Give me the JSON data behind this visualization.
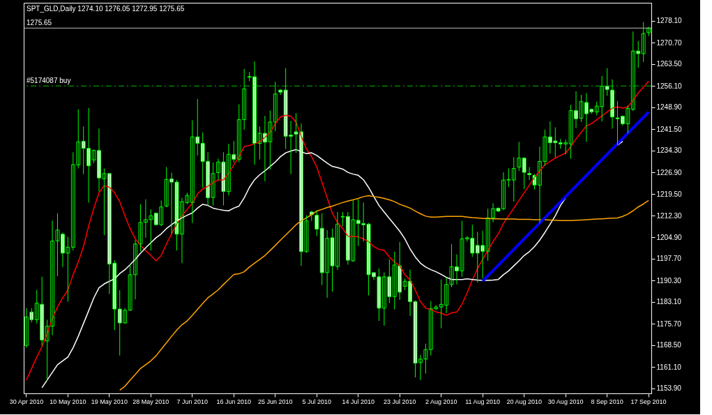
{
  "chart_data": {
    "type": "candlestick",
    "title": "SPT_GLD,Daily  1274.10 1276.05 1272.95 1275.65",
    "categories": [
      "30 Apr 2010",
      null,
      null,
      null,
      null,
      null,
      null,
      null,
      "10 May 2010",
      null,
      null,
      null,
      null,
      null,
      null,
      null,
      "19 May 2010",
      null,
      null,
      null,
      null,
      null,
      null,
      null,
      "28 May 2010",
      null,
      null,
      null,
      null,
      null,
      null,
      null,
      "7 Jun 2010",
      null,
      null,
      null,
      null,
      null,
      null,
      null,
      "16 Jun 2010",
      null,
      null,
      null,
      null,
      null,
      null,
      null,
      "25 Jun 2010",
      null,
      null,
      null,
      null,
      null,
      null,
      null,
      "5 Jul 2010",
      null,
      null,
      null,
      null,
      null,
      null,
      null,
      "14 Jul 2010",
      null,
      null,
      null,
      null,
      null,
      null,
      null,
      "23 Jul 2010",
      null,
      null,
      null,
      null,
      null,
      null,
      null,
      "2 Aug 2010",
      null,
      null,
      null,
      null,
      null,
      null,
      null,
      "11 Aug 2010",
      null,
      null,
      null,
      null,
      null,
      null,
      null,
      "20 Aug 2010",
      null,
      null,
      null,
      null,
      null,
      null,
      null,
      "30 Aug 2010",
      null,
      null,
      null,
      null,
      null,
      null,
      null,
      "8 Sep 2010",
      null,
      null,
      null,
      null,
      null,
      null,
      null,
      "17 Sep 2010"
    ],
    "ohlc": [
      [
        1168.4,
        1181.0,
        1167.6,
        1178.0
      ],
      [
        1179.7,
        1181.0,
        1176.2,
        1177.1
      ],
      [
        1177.1,
        1187.2,
        1175.8,
        1182.7
      ],
      [
        1182.3,
        1191.6,
        1168.4,
        1170.2
      ],
      [
        1169.9,
        1177.1,
        1156.3,
        1174.9
      ],
      [
        1174.9,
        1210.6,
        1171.9,
        1203.7
      ],
      [
        1203.7,
        1213.1,
        1191.8,
        1207.4
      ],
      [
        1206.0,
        1206.5,
        1194.9,
        1199.6
      ],
      [
        1199.6,
        1205.1,
        1183.2,
        1201.6
      ],
      [
        1201.6,
        1233.7,
        1200.5,
        1229.5
      ],
      [
        1229.4,
        1248.2,
        1228.2,
        1237.2
      ],
      [
        1237.4,
        1242.4,
        1226.3,
        1235.0
      ],
      [
        1235.0,
        1248.6,
        1216.7,
        1229.1
      ],
      [
        1231.1,
        1234.6,
        1230.0,
        1234.3
      ],
      [
        1234.3,
        1241.7,
        1220.4,
        1225.0
      ],
      [
        1224.7,
        1228.2,
        1205.7,
        1226.5
      ],
      [
        1226.5,
        1226.5,
        1185.8,
        1195.9
      ],
      [
        1196.2,
        1197.2,
        1173.6,
        1180.7
      ],
      [
        1180.7,
        1187.1,
        1165.0,
        1176.0
      ],
      [
        1176.0,
        1181.0,
        1175.8,
        1180.3
      ],
      [
        1180.3,
        1195.7,
        1180.1,
        1192.3
      ],
      [
        1192.3,
        1204.0,
        1184.0,
        1202.7
      ],
      [
        1202.7,
        1216.1,
        1200.2,
        1210.0
      ],
      [
        1210.0,
        1217.8,
        1204.8,
        1210.9
      ],
      [
        1210.9,
        1214.4,
        1200.5,
        1212.2
      ],
      [
        1213.1,
        1213.3,
        1209.0,
        1209.2
      ],
      [
        1209.2,
        1217.4,
        1208.7,
        1215.2
      ],
      [
        1215.5,
        1228.7,
        1215.2,
        1224.5
      ],
      [
        1224.7,
        1226.8,
        1206.1,
        1223.6
      ],
      [
        1223.6,
        1224.3,
        1200.5,
        1206.0
      ],
      [
        1206.0,
        1218.3,
        1196.2,
        1217.0
      ],
      [
        1216.7,
        1220.0,
        1216.1,
        1219.1
      ],
      [
        1216.7,
        1244.5,
        1209.8,
        1238.9
      ],
      [
        1238.9,
        1251.7,
        1232.6,
        1236.7
      ],
      [
        1236.7,
        1240.4,
        1221.7,
        1230.6
      ],
      [
        1230.6,
        1233.7,
        1215.7,
        1218.3
      ],
      [
        1218.4,
        1230.3,
        1215.7,
        1226.5
      ],
      [
        1226.8,
        1231.5,
        1224.3,
        1230.4
      ],
      [
        1230.4,
        1233.7,
        1215.7,
        1220.4
      ],
      [
        1220.4,
        1236.5,
        1219.1,
        1233.0
      ],
      [
        1232.9,
        1237.5,
        1230.3,
        1231.3
      ],
      [
        1231.3,
        1249.9,
        1230.3,
        1244.7
      ],
      [
        1244.7,
        1261.8,
        1241.3,
        1255.1
      ],
      [
        1259.0,
        1260.8,
        1257.7,
        1259.3
      ],
      [
        1259.2,
        1264.4,
        1229.5,
        1236.7
      ],
      [
        1236.7,
        1242.4,
        1231.3,
        1240.1
      ],
      [
        1240.1,
        1246.0,
        1223.9,
        1237.1
      ],
      [
        1237.2,
        1247.8,
        1227.8,
        1243.9
      ],
      [
        1243.9,
        1257.5,
        1240.8,
        1253.4
      ],
      [
        1254.7,
        1255.1,
        1253.1,
        1254.0
      ],
      [
        1254.7,
        1262.1,
        1234.8,
        1239.1
      ],
      [
        1239.5,
        1244.3,
        1226.3,
        1239.1
      ],
      [
        1240.6,
        1246.9,
        1233.5,
        1239.8
      ],
      [
        1240.6,
        1243.4,
        1195.3,
        1200.1
      ],
      [
        1200.1,
        1212.4,
        1199.7,
        1210.5
      ],
      [
        1213.5,
        1213.9,
        1210.5,
        1212.6
      ],
      [
        1212.4,
        1214.1,
        1205.4,
        1207.7
      ],
      [
        1208.0,
        1213.1,
        1188.8,
        1193.0
      ],
      [
        1193.0,
        1207.4,
        1184.5,
        1204.6
      ],
      [
        1204.8,
        1207.9,
        1186.6,
        1195.3
      ],
      [
        1195.1,
        1213.5,
        1194.0,
        1209.4
      ],
      [
        1211.8,
        1213.5,
        1208.7,
        1212.0
      ],
      [
        1212.0,
        1213.5,
        1195.7,
        1197.2
      ],
      [
        1197.0,
        1217.4,
        1196.6,
        1210.9
      ],
      [
        1210.7,
        1217.8,
        1202.0,
        1209.6
      ],
      [
        1209.6,
        1216.7,
        1203.5,
        1209.2
      ],
      [
        1209.4,
        1209.8,
        1185.3,
        1192.3
      ],
      [
        1193.0,
        1193.2,
        1190.5,
        1191.6
      ],
      [
        1191.6,
        1194.4,
        1176.7,
        1181.0
      ],
      [
        1181.0,
        1193.1,
        1175.1,
        1191.6
      ],
      [
        1191.6,
        1197.5,
        1182.7,
        1184.9
      ],
      [
        1184.9,
        1200.1,
        1180.6,
        1195.6
      ],
      [
        1195.3,
        1203.4,
        1183.8,
        1186.4
      ],
      [
        1188.4,
        1191.0,
        1187.1,
        1190.1
      ],
      [
        1190.1,
        1194.0,
        1178.4,
        1183.2
      ],
      [
        1183.2,
        1183.6,
        1157.6,
        1162.4
      ],
      [
        1162.6,
        1165.2,
        1156.7,
        1163.8
      ],
      [
        1163.8,
        1169.0,
        1158.9,
        1167.0
      ],
      [
        1167.0,
        1183.4,
        1165.0,
        1180.8
      ],
      [
        1180.8,
        1182.0,
        1180.3,
        1181.4
      ],
      [
        1181.4,
        1190.7,
        1174.2,
        1182.3
      ],
      [
        1182.0,
        1191.4,
        1179.3,
        1189.0
      ],
      [
        1189.0,
        1202.7,
        1188.1,
        1195.0
      ],
      [
        1195.0,
        1199.2,
        1189.0,
        1193.6
      ],
      [
        1193.6,
        1210.5,
        1191.6,
        1204.4
      ],
      [
        1204.4,
        1205.4,
        1203.5,
        1204.8
      ],
      [
        1204.6,
        1209.2,
        1198.3,
        1199.6
      ],
      [
        1202.2,
        1206.8,
        1189.7,
        1199.6
      ],
      [
        1202.2,
        1207.2,
        1191.0,
        1200.2
      ],
      [
        1200.2,
        1214.6,
        1197.0,
        1211.5
      ],
      [
        1211.5,
        1216.5,
        1210.0,
        1214.6
      ],
      [
        1214.8,
        1215.0,
        1213.5,
        1213.8
      ],
      [
        1214.6,
        1226.9,
        1214.1,
        1224.3
      ],
      [
        1224.3,
        1228.2,
        1221.9,
        1224.5
      ],
      [
        1224.3,
        1232.0,
        1217.0,
        1228.2
      ],
      [
        1228.7,
        1237.2,
        1227.4,
        1231.7
      ],
      [
        1231.7,
        1232.0,
        1221.3,
        1226.9
      ],
      [
        1226.5,
        1228.7,
        1224.3,
        1226.1
      ],
      [
        1225.9,
        1226.3,
        1221.1,
        1222.6
      ],
      [
        1222.6,
        1235.6,
        1209.8,
        1230.6
      ],
      [
        1230.6,
        1241.3,
        1229.1,
        1238.9
      ],
      [
        1238.9,
        1244.1,
        1233.2,
        1236.9
      ],
      [
        1237.5,
        1242.1,
        1232.0,
        1236.9
      ],
      [
        1236.9,
        1238.2,
        1234.9,
        1236.5
      ],
      [
        1236.5,
        1238.0,
        1233.0,
        1236.9
      ],
      [
        1236.5,
        1249.7,
        1231.5,
        1247.8
      ],
      [
        1247.8,
        1254.3,
        1241.9,
        1245.0
      ],
      [
        1245.2,
        1253.1,
        1243.9,
        1250.8
      ],
      [
        1250.5,
        1253.7,
        1237.2,
        1246.7
      ],
      [
        1248.2,
        1248.5,
        1246.7,
        1247.3
      ],
      [
        1247.3,
        1250.8,
        1246.2,
        1249.3
      ],
      [
        1249.1,
        1259.5,
        1244.1,
        1256.0
      ],
      [
        1256.0,
        1262.1,
        1252.8,
        1254.9
      ],
      [
        1254.7,
        1258.3,
        1241.7,
        1245.6
      ],
      [
        1245.3,
        1251.0,
        1236.1,
        1245.0
      ],
      [
        1245.9,
        1246.0,
        1242.7,
        1243.3
      ],
      [
        1243.3,
        1249.5,
        1240.1,
        1248.5
      ],
      [
        1248.2,
        1274.5,
        1247.6,
        1267.9
      ],
      [
        1267.9,
        1271.3,
        1262.3,
        1267.0
      ],
      [
        1267.0,
        1277.7,
        1264.2,
        1273.8
      ],
      [
        1274.1,
        1276.05,
        1272.95,
        1275.65
      ]
    ],
    "series": [
      {
        "type": "line",
        "color": "#ff0000",
        "values": [
          1156.7,
          1160.6,
          1164.5,
          1168.0,
          1172.3,
          1177.5,
          1181.4,
          1184.5,
          1187.1,
          1192.3,
          1196.6,
          1201.8,
          1208.7,
          1214.8,
          1220.0,
          1222.4,
          1221.9,
          1220.0,
          1217.0,
          1212.2,
          1207.9,
          1204.4,
          1202.2,
          1200.5,
          1198.8,
          1197.0,
          1198.8,
          1202.7,
          1206.1,
          1209.6,
          1212.2,
          1214.4,
          1216.5,
          1219.6,
          1221.3,
          1222.2,
          1223.5,
          1224.3,
          1224.3,
          1226.5,
          1229.5,
          1232.1,
          1235.6,
          1236.0,
          1236.5,
          1237.3,
          1238.7,
          1240.4,
          1243.4,
          1245.6,
          1246.2,
          1245.9,
          1243.9,
          1239.1,
          1234.8,
          1232.2,
          1228.7,
          1223.5,
          1218.3,
          1213.1,
          1210.0,
          1207.9,
          1205.3,
          1205.3,
          1205.1,
          1204.4,
          1203.5,
          1201.8,
          1200.9,
          1200.5,
          1198.3,
          1196.6,
          1195.3,
          1192.3,
          1190.5,
          1187.1,
          1183.2,
          1181.0,
          1180.6,
          1179.7,
          1179.3,
          1178.6,
          1179.4,
          1179.7,
          1182.3,
          1186.2,
          1190.5,
          1194.4,
          1197.5,
          1200.5,
          1203.5,
          1206.1,
          1209.6,
          1212.2,
          1214.8,
          1217.4,
          1220.0,
          1222.6,
          1225.2,
          1227.4,
          1229.5,
          1230.6,
          1231.7,
          1232.6,
          1233.4,
          1235.6,
          1238.2,
          1240.4,
          1242.6,
          1243.4,
          1244.7,
          1246.0,
          1247.3,
          1248.6,
          1249.0,
          1248.6,
          1249.0,
          1251.2,
          1253.8,
          1255.6,
          1257.7
        ]
      },
      {
        "type": "line",
        "color": "#ffffff",
        "values": [
          null,
          null,
          null,
          1154.1,
          1156.7,
          1159.3,
          1161.9,
          1163.2,
          1164.5,
          1167.6,
          1171.5,
          1175.8,
          1180.1,
          1184.5,
          1187.9,
          1189.2,
          1190.1,
          1190.9,
          1192.7,
          1194.0,
          1195.7,
          1197.5,
          1199.6,
          1201.4,
          1203.1,
          1204.8,
          1206.1,
          1207.9,
          1209.2,
          1210.5,
          1211.5,
          1212.4,
          1213.2,
          1214.8,
          1216.1,
          1215.7,
          1214.8,
          1214.4,
          1214.1,
          1213.9,
          1214.8,
          1215.5,
          1218.3,
          1221.8,
          1224.4,
          1226.1,
          1227.4,
          1228.9,
          1230.4,
          1232.2,
          1233.5,
          1234.1,
          1234.6,
          1233.9,
          1233.2,
          1233.5,
          1232.6,
          1231.3,
          1230.0,
          1228.9,
          1228.5,
          1228.0,
          1226.9,
          1226.3,
          1225.9,
          1224.4,
          1221.8,
          1218.7,
          1215.7,
          1213.5,
          1211.3,
          1209.2,
          1207.0,
          1204.4,
          1201.0,
          1198.3,
          1196.2,
          1194.9,
          1194.0,
          1193.3,
          1192.4,
          1191.4,
          1190.7,
          1190.7,
          1190.7,
          1190.9,
          1190.7,
          1190.5,
          1190.4,
          1190.4,
          1190.5,
          1190.7,
          1192.3,
          1193.6,
          1195.3,
          1197.0,
          1198.8,
          1200.1,
          1201.8,
          1204.0,
          1206.6,
          1209.4,
          1212.2,
          1215.7,
          1218.3,
          null,
          null,
          null,
          null,
          null,
          null,
          null,
          null,
          null,
          1236.1,
          1237.4,
          null,
          null,
          null,
          null,
          null
        ]
      },
      {
        "type": "line",
        "color": "#ffa500",
        "values": [
          null,
          null,
          null,
          null,
          null,
          null,
          null,
          null,
          null,
          null,
          null,
          null,
          null,
          null,
          null,
          null,
          null,
          null,
          1153.3,
          1154.6,
          1156.7,
          1158.6,
          1160.6,
          1161.9,
          1163.2,
          1164.9,
          1167.1,
          1169.3,
          1171.5,
          1173.6,
          1175.4,
          1176.7,
          1178.6,
          1180.6,
          1182.6,
          1184.5,
          1185.8,
          1187.2,
          1189.0,
          1190.7,
          1192.4,
          1192.6,
          1193.3,
          1194.9,
          1196.2,
          1197.5,
          1198.8,
          1200.5,
          1202.2,
          1204.0,
          1205.7,
          1207.4,
          1209.2,
          1210.5,
          1211.5,
          1212.6,
          1213.8,
          1214.4,
          1215.0,
          1215.5,
          1216.1,
          1216.7,
          1217.2,
          1217.6,
          1218.1,
          1218.7,
          1219.0,
          1218.7,
          1218.5,
          1218.1,
          1217.6,
          1217.0,
          1216.1,
          1215.5,
          1214.8,
          1213.8,
          1212.9,
          1212.1,
          1211.8,
          1211.8,
          1211.9,
          1212.0,
          1212.0,
          1212.0,
          1212.0,
          1211.8,
          1211.6,
          1211.5,
          1211.3,
          1211.3,
          1211.2,
          1211.2,
          1211.1,
          1211.1,
          1211.1,
          1211.0,
          1211.0,
          1211.0,
          1210.9,
          1210.9,
          1210.9,
          1210.8,
          1210.7,
          1210.6,
          1210.6,
          1210.6,
          1210.7,
          1210.8,
          1210.9,
          1211.0,
          1211.1,
          1211.2,
          1211.3,
          1211.4,
          1211.5,
          1212.0,
          1212.8,
          1213.9,
          1215.2,
          1216.2,
          1217.4
        ]
      },
      {
        "type": "line",
        "color": "#0000ff",
        "x": [
          "11 Aug 2010",
          "17 Sep 2010"
        ],
        "values": [
          1190.1,
          1247.3
        ]
      }
    ],
    "ylim": [
      1152.2,
      1284.2
    ],
    "yticks": [
      {
        "value": 1278.1,
        "label": "1278.10"
      },
      {
        "value": 1270.7,
        "label": "1270.70"
      },
      {
        "value": 1263.5,
        "label": "1263.50"
      },
      {
        "value": 1256.1,
        "label": "1256.10"
      },
      {
        "value": 1248.9,
        "label": "1248.90"
      },
      {
        "value": 1241.5,
        "label": "1241.50"
      },
      {
        "value": 1234.3,
        "label": "1234.30"
      },
      {
        "value": 1226.9,
        "label": "1226.90"
      },
      {
        "value": 1219.5,
        "label": "1219.50"
      },
      {
        "value": 1212.3,
        "label": "1212.30"
      },
      {
        "value": 1204.9,
        "label": "1204.90"
      },
      {
        "value": 1197.7,
        "label": "1197.70"
      },
      {
        "value": 1190.3,
        "label": "1190.30"
      },
      {
        "value": 1183.1,
        "label": "1183.10"
      },
      {
        "value": 1175.7,
        "label": "1175.70"
      },
      {
        "value": 1168.5,
        "label": "1168.50"
      },
      {
        "value": 1161.1,
        "label": "1161.10"
      },
      {
        "value": 1153.9,
        "label": "1153.90"
      }
    ],
    "ref_lines": [
      {
        "axis": "y",
        "value": 1256.1,
        "label": "#5174087 buy",
        "color": "#00c000",
        "line_style": "dashed"
      },
      {
        "axis": "y",
        "value": 1275.65,
        "label": "1275.65",
        "color": "#c0c0c0",
        "line_style": "solid"
      }
    ],
    "grid": false,
    "legend": false
  }
}
